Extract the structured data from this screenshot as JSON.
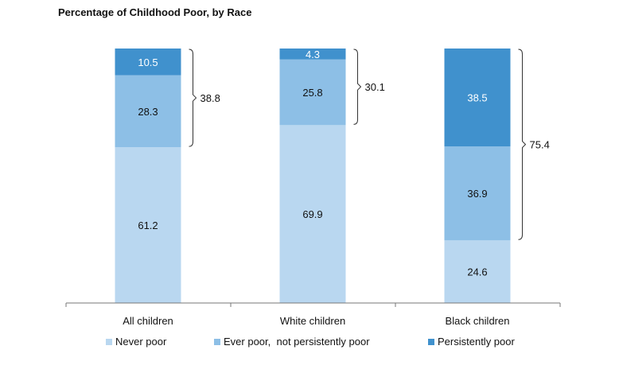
{
  "chart_data": {
    "type": "bar",
    "stacked": true,
    "title": "Percentage of Childhood Poor, by Race",
    "categories": [
      "All children",
      "White children",
      "Black children"
    ],
    "series": [
      {
        "name": "Never poor",
        "color": "#b9d7f0",
        "values": [
          61.2,
          69.9,
          24.6
        ]
      },
      {
        "name": "Ever poor,  not persistently poor",
        "color": "#8dbfe6",
        "values": [
          28.3,
          25.8,
          36.9
        ]
      },
      {
        "name": "Persistently poor",
        "color": "#4091cd",
        "values": [
          10.5,
          4.3,
          38.5
        ]
      }
    ],
    "bracket_totals": [
      38.8,
      30.1,
      75.4
    ],
    "ylim": [
      0,
      100
    ],
    "grid": false,
    "legend_position": "bottom"
  }
}
